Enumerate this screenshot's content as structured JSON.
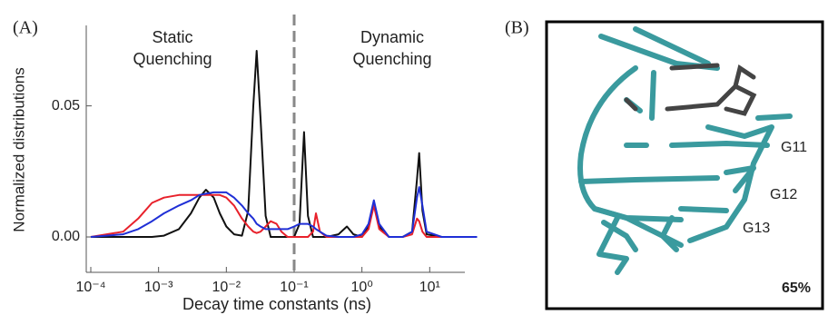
{
  "chart_data": {
    "type": "line",
    "panel_label": "(A)",
    "y_label": "Normalized distributions",
    "x_label": "Decay time constants (ns)",
    "annotations": [
      [
        "Static",
        "Quenching"
      ],
      [
        "Dynamic",
        "Quenching"
      ]
    ],
    "log_x": true,
    "vline": 0.1,
    "xlim": [
      0.0001,
      31
    ],
    "ylim": [
      -0.0135,
      0.08
    ],
    "xticks": [
      {
        "value": 0.0001,
        "label": "10⁻⁴"
      },
      {
        "value": 0.001,
        "label": "10⁻³"
      },
      {
        "value": 0.01,
        "label": "10⁻²"
      },
      {
        "value": 0.1,
        "label": "10⁻¹"
      },
      {
        "value": 1,
        "label": "10⁰"
      },
      {
        "value": 10,
        "label": "10¹"
      }
    ],
    "yticks": [
      {
        "value": 0,
        "label": "0.00"
      },
      0.05
    ],
    "x": [
      0.0001,
      0.0003,
      0.0005,
      0.0008,
      0.0012,
      0.002,
      0.003,
      0.004,
      0.005,
      0.0065,
      0.008,
      0.01,
      0.013,
      0.017,
      0.021,
      0.025,
      0.028,
      0.032,
      0.038,
      0.045,
      0.055,
      0.065,
      0.08,
      0.1,
      0.12,
      0.14,
      0.16,
      0.19,
      0.21,
      0.24,
      0.3,
      0.45,
      0.6,
      0.75,
      1.0,
      1.25,
      1.5,
      1.8,
      2.5,
      4,
      5.5,
      6.5,
      7,
      7.8,
      9,
      15,
      50
    ],
    "series": [
      {
        "color": "#111111",
        "values": [
          0,
          0,
          0,
          0,
          0.0005,
          0.003,
          0.009,
          0.015,
          0.018,
          0.015,
          0.009,
          0.004,
          0.001,
          0.0005,
          0.01,
          0.05,
          0.071,
          0.045,
          0.008,
          0,
          0,
          0,
          0,
          0,
          0.005,
          0.04,
          0.008,
          0,
          0,
          0,
          0,
          0.001,
          0.004,
          0.001,
          0,
          0.004,
          0.013,
          0.004,
          0,
          0,
          0.002,
          0.022,
          0.032,
          0.01,
          0.001,
          0,
          0
        ]
      },
      {
        "color": "#e8212b",
        "values": [
          0,
          0.002,
          0.007,
          0.013,
          0.015,
          0.016,
          0.016,
          0.016,
          0.016,
          0.016,
          0.016,
          0.015,
          0.012,
          0.007,
          0.004,
          0.002,
          0.0015,
          0.002,
          0.004,
          0.006,
          0.005,
          0.002,
          0,
          0,
          0,
          0,
          0,
          0.002,
          0.009,
          0.002,
          0,
          0,
          0,
          0,
          0,
          0.003,
          0.012,
          0.003,
          0,
          0,
          0.001,
          0.007,
          0.006,
          0.002,
          0,
          0,
          0
        ]
      },
      {
        "color": "#1f2fd6",
        "values": [
          0,
          0.001,
          0.003,
          0.006,
          0.009,
          0.012,
          0.014,
          0.016,
          0.0165,
          0.017,
          0.017,
          0.017,
          0.015,
          0.012,
          0.009,
          0.007,
          0.005,
          0.004,
          0.003,
          0.003,
          0.003,
          0.003,
          0.003,
          0.004,
          0.005,
          0.005,
          0.005,
          0.004,
          0.003,
          0.002,
          0.0005,
          0,
          0,
          0,
          0.001,
          0.005,
          0.014,
          0.005,
          0,
          0,
          0.002,
          0.015,
          0.019,
          0.012,
          0.002,
          0,
          0
        ]
      }
    ]
  },
  "panel_b": {
    "label": "(B)",
    "residues": [
      "G11",
      "G12",
      "G13"
    ],
    "percentage": "65%"
  }
}
